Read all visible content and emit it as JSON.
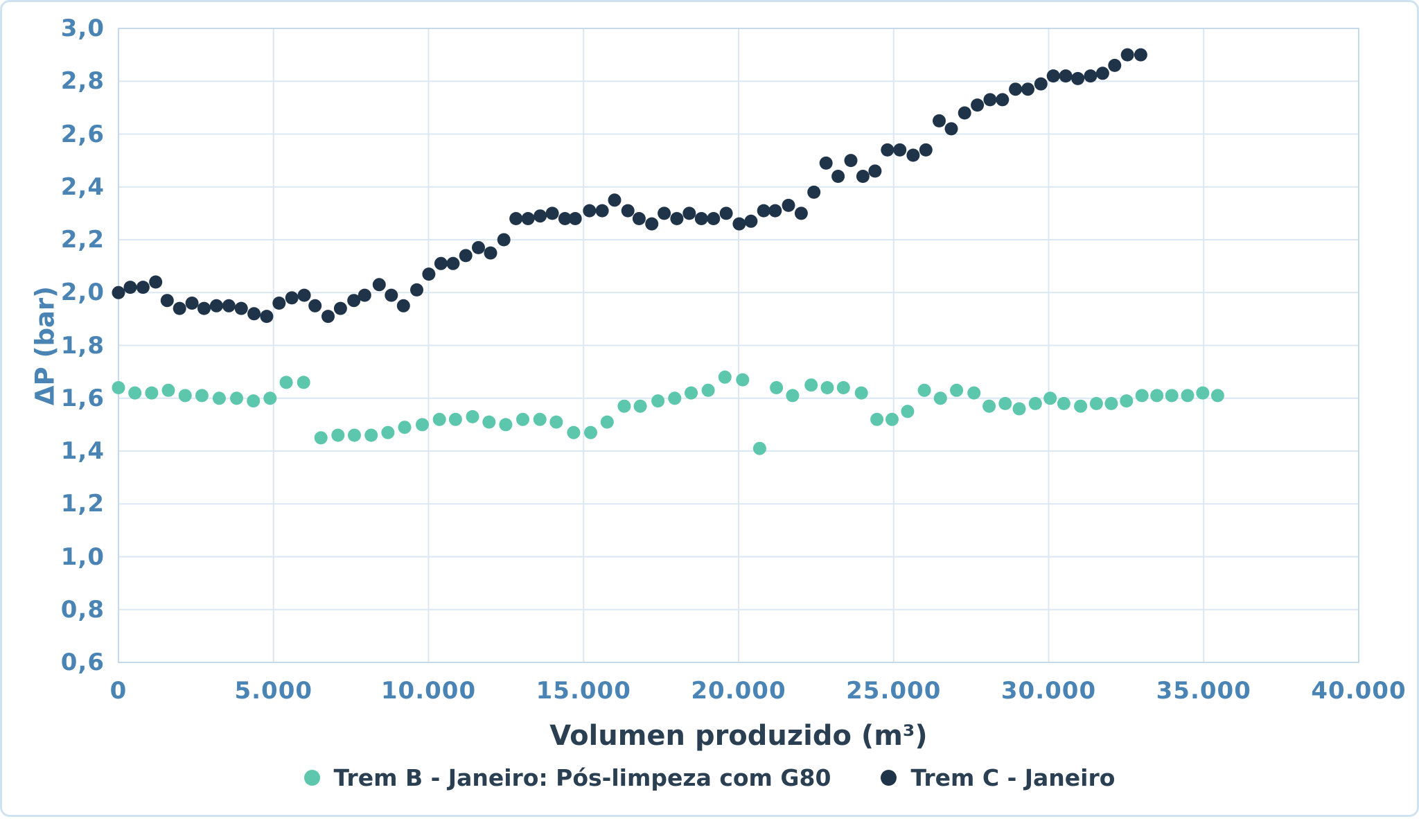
{
  "colors": {
    "background": "#ffffff",
    "card_border": "#cfe2f0",
    "gridline": "#dbe7f3",
    "plot_frame": "#c6d9ea",
    "tick_label": "#4a84b5",
    "y_axis_title": "#4a84b5",
    "x_axis_title": "#2b3f52",
    "legend_text": "#2b3f52",
    "series_b": "#5cc7ac",
    "series_c": "#203449"
  },
  "chart_data": {
    "type": "scatter",
    "title": "",
    "xlabel": "Volumen produzido (m³)",
    "ylabel": "ΔP (bar)",
    "xlim": [
      0,
      40000
    ],
    "ylim": [
      0.6,
      3.0
    ],
    "grid": true,
    "legend_position": "bottom",
    "x_tick_values": [
      0,
      5000,
      10000,
      15000,
      20000,
      25000,
      30000,
      35000,
      40000
    ],
    "x_tick_labels": [
      "0",
      "5.000",
      "10.000",
      "15.000",
      "20.000",
      "25.000",
      "30.000",
      "35.000",
      "40.000"
    ],
    "y_tick_values": [
      0.6,
      0.8,
      1.0,
      1.2,
      1.4,
      1.6,
      1.8,
      2.0,
      2.2,
      2.4,
      2.6,
      2.8,
      3.0
    ],
    "y_tick_labels": [
      "0,6",
      "0,8",
      "1,0",
      "1,2",
      "1,4",
      "1,6",
      "1,8",
      "2,0",
      "2,2",
      "2,4",
      "2,6",
      "2,8",
      "3,0"
    ],
    "series": [
      {
        "name": "Trem B - Janeiro: Pós-limpeza com G80",
        "color": "#5cc7ac",
        "points": [
          [
            0,
            1.64
          ],
          [
            530,
            1.62
          ],
          [
            1070,
            1.62
          ],
          [
            1610,
            1.63
          ],
          [
            2150,
            1.61
          ],
          [
            2690,
            1.61
          ],
          [
            3250,
            1.6
          ],
          [
            3810,
            1.6
          ],
          [
            4350,
            1.59
          ],
          [
            4890,
            1.6
          ],
          [
            5410,
            1.66
          ],
          [
            5970,
            1.66
          ],
          [
            6530,
            1.45
          ],
          [
            7080,
            1.46
          ],
          [
            7610,
            1.46
          ],
          [
            8150,
            1.46
          ],
          [
            8690,
            1.47
          ],
          [
            9230,
            1.49
          ],
          [
            9800,
            1.5
          ],
          [
            10350,
            1.52
          ],
          [
            10870,
            1.52
          ],
          [
            11420,
            1.53
          ],
          [
            11950,
            1.51
          ],
          [
            12490,
            1.5
          ],
          [
            13040,
            1.52
          ],
          [
            13590,
            1.52
          ],
          [
            14120,
            1.51
          ],
          [
            14680,
            1.47
          ],
          [
            15230,
            1.47
          ],
          [
            15760,
            1.51
          ],
          [
            16310,
            1.57
          ],
          [
            16830,
            1.57
          ],
          [
            17400,
            1.59
          ],
          [
            17940,
            1.6
          ],
          [
            18470,
            1.62
          ],
          [
            19020,
            1.63
          ],
          [
            19560,
            1.68
          ],
          [
            20130,
            1.67
          ],
          [
            20680,
            1.41
          ],
          [
            21220,
            1.64
          ],
          [
            21740,
            1.61
          ],
          [
            22340,
            1.65
          ],
          [
            22860,
            1.64
          ],
          [
            23380,
            1.64
          ],
          [
            23960,
            1.62
          ],
          [
            24460,
            1.52
          ],
          [
            24950,
            1.52
          ],
          [
            25450,
            1.55
          ],
          [
            25990,
            1.63
          ],
          [
            26510,
            1.6
          ],
          [
            27030,
            1.63
          ],
          [
            27590,
            1.62
          ],
          [
            28080,
            1.57
          ],
          [
            28600,
            1.58
          ],
          [
            29050,
            1.56
          ],
          [
            29570,
            1.58
          ],
          [
            30050,
            1.6
          ],
          [
            30490,
            1.58
          ],
          [
            31030,
            1.57
          ],
          [
            31540,
            1.58
          ],
          [
            32020,
            1.58
          ],
          [
            32510,
            1.59
          ],
          [
            33010,
            1.61
          ],
          [
            33490,
            1.61
          ],
          [
            33970,
            1.61
          ],
          [
            34480,
            1.61
          ],
          [
            34970,
            1.62
          ],
          [
            35450,
            1.61
          ]
        ]
      },
      {
        "name": "Trem C - Janeiro",
        "color": "#203449",
        "points": [
          [
            0,
            2.0
          ],
          [
            380,
            2.02
          ],
          [
            790,
            2.02
          ],
          [
            1200,
            2.04
          ],
          [
            1570,
            1.97
          ],
          [
            1970,
            1.94
          ],
          [
            2370,
            1.96
          ],
          [
            2760,
            1.94
          ],
          [
            3160,
            1.95
          ],
          [
            3560,
            1.95
          ],
          [
            3960,
            1.94
          ],
          [
            4370,
            1.92
          ],
          [
            4780,
            1.91
          ],
          [
            5180,
            1.96
          ],
          [
            5590,
            1.98
          ],
          [
            5990,
            1.99
          ],
          [
            6340,
            1.95
          ],
          [
            6760,
            1.91
          ],
          [
            7160,
            1.94
          ],
          [
            7590,
            1.97
          ],
          [
            7940,
            1.99
          ],
          [
            8410,
            2.03
          ],
          [
            8800,
            1.99
          ],
          [
            9190,
            1.95
          ],
          [
            9620,
            2.01
          ],
          [
            10010,
            2.07
          ],
          [
            10400,
            2.11
          ],
          [
            10790,
            2.11
          ],
          [
            11200,
            2.14
          ],
          [
            11610,
            2.17
          ],
          [
            12000,
            2.15
          ],
          [
            12430,
            2.2
          ],
          [
            12820,
            2.28
          ],
          [
            13210,
            2.28
          ],
          [
            13600,
            2.29
          ],
          [
            13990,
            2.3
          ],
          [
            14400,
            2.28
          ],
          [
            14730,
            2.28
          ],
          [
            15190,
            2.31
          ],
          [
            15600,
            2.31
          ],
          [
            16000,
            2.35
          ],
          [
            16430,
            2.31
          ],
          [
            16790,
            2.28
          ],
          [
            17200,
            2.26
          ],
          [
            17600,
            2.3
          ],
          [
            18010,
            2.28
          ],
          [
            18410,
            2.3
          ],
          [
            18800,
            2.28
          ],
          [
            19190,
            2.28
          ],
          [
            19600,
            2.3
          ],
          [
            20020,
            2.26
          ],
          [
            20400,
            2.27
          ],
          [
            20810,
            2.31
          ],
          [
            21180,
            2.31
          ],
          [
            21610,
            2.33
          ],
          [
            22020,
            2.3
          ],
          [
            22430,
            2.38
          ],
          [
            22820,
            2.49
          ],
          [
            23210,
            2.44
          ],
          [
            23620,
            2.5
          ],
          [
            24010,
            2.44
          ],
          [
            24400,
            2.46
          ],
          [
            24800,
            2.54
          ],
          [
            25200,
            2.54
          ],
          [
            25630,
            2.52
          ],
          [
            26040,
            2.54
          ],
          [
            26470,
            2.65
          ],
          [
            26860,
            2.62
          ],
          [
            27290,
            2.68
          ],
          [
            27700,
            2.71
          ],
          [
            28110,
            2.73
          ],
          [
            28510,
            2.73
          ],
          [
            28930,
            2.77
          ],
          [
            29330,
            2.77
          ],
          [
            29750,
            2.79
          ],
          [
            30150,
            2.82
          ],
          [
            30550,
            2.82
          ],
          [
            30940,
            2.81
          ],
          [
            31350,
            2.82
          ],
          [
            31740,
            2.83
          ],
          [
            32130,
            2.86
          ],
          [
            32540,
            2.9
          ],
          [
            32970,
            2.9
          ]
        ]
      }
    ]
  }
}
